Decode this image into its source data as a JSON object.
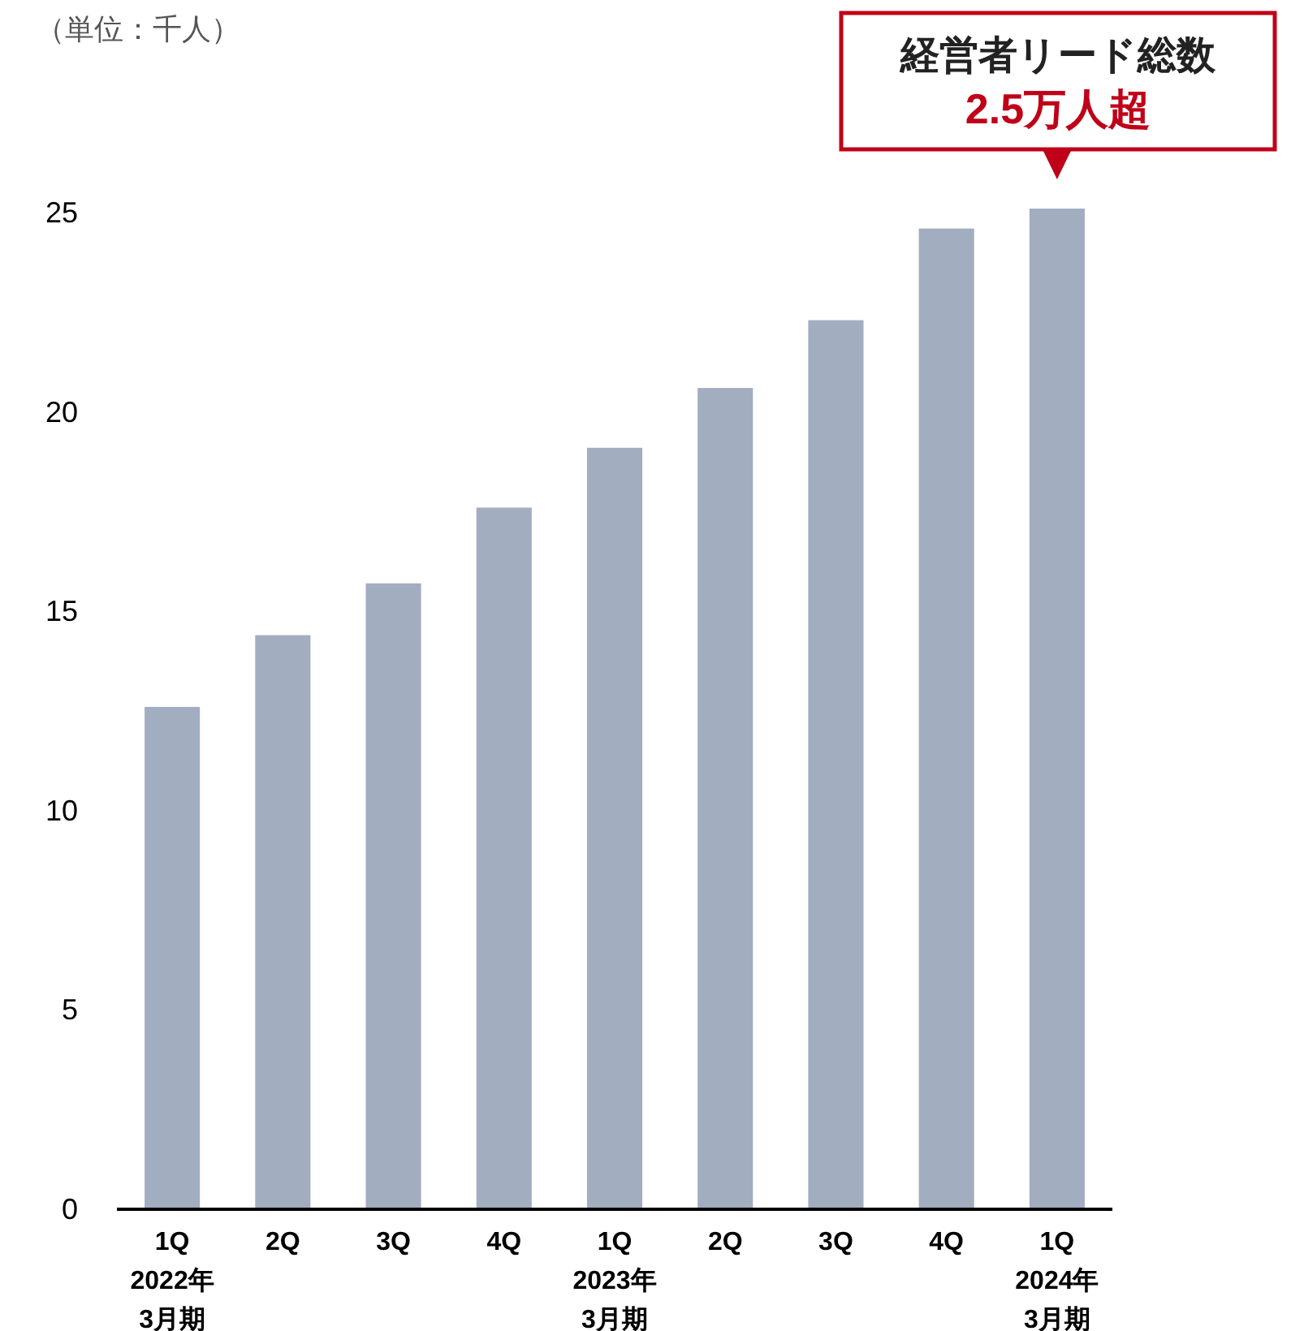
{
  "chart_data": {
    "type": "bar",
    "categories": [
      "1Q\n2022年\n3月期",
      "2Q",
      "3Q",
      "4Q",
      "1Q\n2023年\n3月期",
      "2Q",
      "3Q",
      "4Q",
      "1Q\n2024年\n3月期"
    ],
    "values": [
      12.6,
      14.4,
      15.7,
      17.6,
      19.1,
      20.6,
      22.3,
      24.6,
      25.1
    ],
    "color": "#a2adc0",
    "ylim": [
      0,
      25.1
    ],
    "yticks": [
      0,
      5,
      10,
      15,
      20,
      25
    ],
    "grid": false,
    "annotations": [
      "（単位：千人）",
      {
        "text": "経営者リード総数\n2.5万人超",
        "x": "1Q\n2024年\n3月期",
        "y": 25.1
      }
    ]
  }
}
